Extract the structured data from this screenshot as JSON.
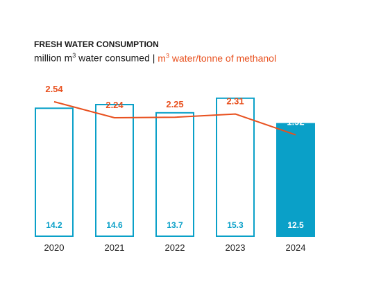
{
  "title": "FRESH WATER CONSUMPTION",
  "subtitle": {
    "left_pre": "million m",
    "left_sup": "3",
    "left_post": " water consumed",
    "sep": " | ",
    "right_pre": "m",
    "right_sup": "3",
    "right_post": " water/tonne of methanol"
  },
  "colors": {
    "bar": "#0aa0c8",
    "line": "#e8501e",
    "text": "#1a1a1a",
    "bar_label_light": "#ffffff"
  },
  "chart_data": {
    "type": "bar",
    "categories": [
      "2020",
      "2021",
      "2022",
      "2023",
      "2024"
    ],
    "series": [
      {
        "values": [
          14.2,
          14.6,
          13.7,
          15.3,
          12.5
        ],
        "labels": [
          "14.2",
          "14.6",
          "13.7",
          "15.3",
          "12.5"
        ],
        "style": [
          "outline",
          "outline",
          "outline",
          "outline",
          "filled"
        ]
      },
      {
        "type": "line",
        "values": [
          2.54,
          2.24,
          2.25,
          2.31,
          1.92
        ],
        "labels": [
          "2.54",
          "2.24",
          "2.25",
          "2.31",
          "1.92"
        ]
      }
    ]
  }
}
